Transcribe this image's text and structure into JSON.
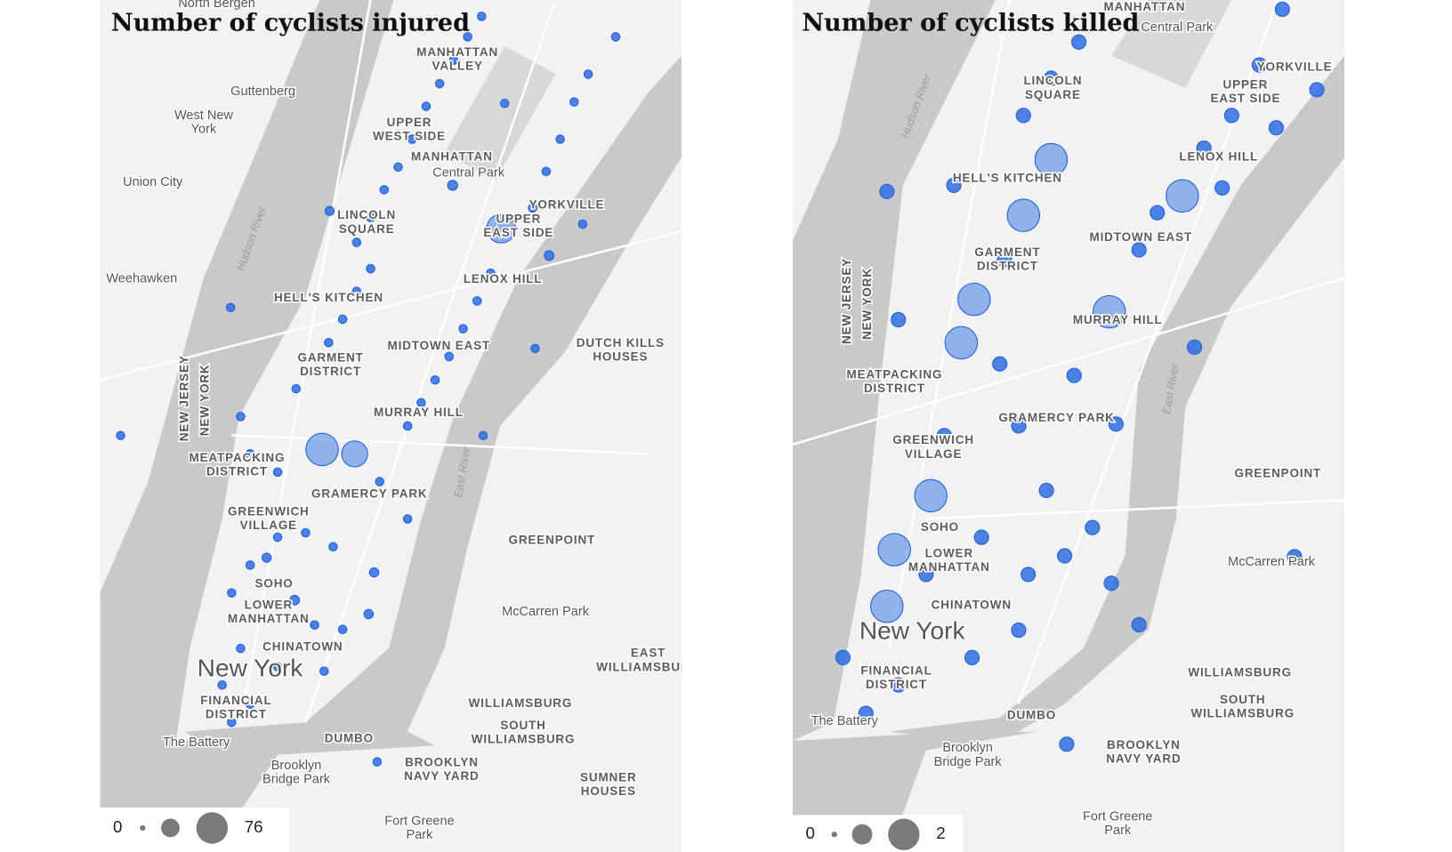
{
  "panels": [
    {
      "title": "Number of cyclists injured",
      "legend": {
        "min": 0,
        "max": 76
      },
      "labels": [
        [
          "North Bergen"
        ],
        [
          "MANHATTAN",
          "VALLEY"
        ],
        [
          "Guttenberg"
        ],
        [
          "West New",
          "York"
        ],
        [
          "Union City"
        ],
        [
          "UPPER",
          "WEST SIDE"
        ],
        [
          "MANHATTAN"
        ],
        [
          "Central Park"
        ],
        [
          "YORKVILLE"
        ],
        [
          "LINCOLN",
          "SQUARE"
        ],
        [
          "UPPER",
          "EAST SIDE"
        ],
        [
          "Weehawken"
        ],
        [
          "HELL'S KITCHEN"
        ],
        [
          "LENOX HILL"
        ],
        [
          "DUTCH KILLS",
          "HOUSES"
        ],
        [
          "GARMENT",
          "DISTRICT"
        ],
        [
          "MIDTOWN EAST"
        ],
        [
          "MURRAY HILL"
        ],
        [
          "MEATPACKING",
          "DISTRICT"
        ],
        [
          "GRAMERCY PARK"
        ],
        [
          "GREENWICH",
          "VILLAGE"
        ],
        [
          "GREENPOINT"
        ],
        [
          "SOHO"
        ],
        [
          "LOWER",
          "MANHATTAN"
        ],
        [
          "McCarren Park"
        ],
        [
          "CHINATOWN"
        ],
        [
          "New York"
        ],
        [
          "EAST",
          "WILLIAMSBURG"
        ],
        [
          "WILLIAMSBURG"
        ],
        [
          "SOUTH",
          "WILLIAMSBURG"
        ],
        [
          "FINANCIAL",
          "DISTRICT"
        ],
        [
          "The Battery"
        ],
        [
          "DUMBO"
        ],
        [
          "Brooklyn",
          "Bridge Park"
        ],
        [
          "BROOKLYN",
          "NAVY YARD"
        ],
        [
          "SUMNER",
          "HOUSES"
        ],
        [
          "Fort Greene",
          "Park"
        ],
        [
          "NEW JERSEY"
        ],
        [
          "NEW YORK"
        ],
        [
          "Hudson River"
        ],
        [
          "East River"
        ]
      ],
      "points": [
        {
          "lon": -73.9941,
          "lat": 40.7422,
          "count": 76
        },
        {
          "lon": -73.9876,
          "lat": 40.7416,
          "count": 65
        },
        {
          "lon": -73.9583,
          "lat": 40.7724,
          "count": 70
        },
        {
          "lon": -73.968,
          "lat": 40.7783,
          "count": 20
        },
        {
          "lon": -73.9487,
          "lat": 40.7687,
          "count": 18
        },
        {
          "lon": -73.9926,
          "lat": 40.7748,
          "count": 12
        },
        {
          "lon": -73.9848,
          "lat": 40.7197,
          "count": 15
        },
        {
          "lon": -73.9996,
          "lat": 40.7216,
          "count": 18
        },
        {
          "lon": -73.9837,
          "lat": 40.7254,
          "count": 15
        },
        {
          "lon": -74.0052,
          "lat": 40.7274,
          "count": 14
        },
        {
          "lon": -74.0124,
          "lat": 40.7616,
          "count": 3
        },
        {
          "lon": -74.0344,
          "lat": 40.7441,
          "count": 3
        },
        {
          "lon": -73.9831,
          "lat": 40.6995,
          "count": 3
        },
        {
          "lon": -73.9619,
          "lat": 40.7441,
          "count": 3
        },
        {
          "lon": -73.9515,
          "lat": 40.756,
          "count": 3
        },
        {
          "lon": -73.9576,
          "lat": 40.7895,
          "count": 3
        },
        {
          "lon": -73.942,
          "lat": 40.773,
          "count": 3
        },
        {
          "lon": -73.9928,
          "lat": 40.7568,
          "count": 5
        },
        {
          "lon": -73.99,
          "lat": 40.76,
          "count": 5
        },
        {
          "lon": -73.9872,
          "lat": 40.7638,
          "count": 5
        },
        {
          "lon": -73.9844,
          "lat": 40.7669,
          "count": 6
        },
        {
          "lon": -73.9872,
          "lat": 40.7705,
          "count": 5
        },
        {
          "lon": -73.9844,
          "lat": 40.7739,
          "count": 5
        },
        {
          "lon": -73.9817,
          "lat": 40.7777,
          "count": 5
        },
        {
          "lon": -73.9789,
          "lat": 40.7808,
          "count": 5
        },
        {
          "lon": -73.9761,
          "lat": 40.7846,
          "count": 5
        },
        {
          "lon": -73.9733,
          "lat": 40.7891,
          "count": 5
        },
        {
          "lon": -73.9706,
          "lat": 40.7922,
          "count": 5
        },
        {
          "lon": -73.9678,
          "lat": 40.7954,
          "count": 5
        },
        {
          "lon": -73.965,
          "lat": 40.7986,
          "count": 5
        },
        {
          "lon": -73.9622,
          "lat": 40.8014,
          "count": 5
        },
        {
          "lon": -73.977,
          "lat": 40.7454,
          "count": 6
        },
        {
          "lon": -73.9743,
          "lat": 40.7486,
          "count": 5
        },
        {
          "lon": -73.9715,
          "lat": 40.7517,
          "count": 5
        },
        {
          "lon": -73.9687,
          "lat": 40.7549,
          "count": 5
        },
        {
          "lon": -73.9659,
          "lat": 40.7587,
          "count": 5
        },
        {
          "lon": -73.9631,
          "lat": 40.7625,
          "count": 5
        },
        {
          "lon": -73.9604,
          "lat": 40.7663,
          "count": 5
        },
        {
          "lon": -73.952,
          "lat": 40.7752,
          "count": 5
        },
        {
          "lon": -73.9493,
          "lat": 40.7802,
          "count": 5
        },
        {
          "lon": -73.9465,
          "lat": 40.7846,
          "count": 5
        },
        {
          "lon": -73.9437,
          "lat": 40.7897,
          "count": 5
        },
        {
          "lon": -73.9409,
          "lat": 40.7935,
          "count": 5
        },
        {
          "lon": -73.9354,
          "lat": 40.7986,
          "count": 5
        },
        {
          "lon": -74.003,
          "lat": 40.7302,
          "count": 5
        },
        {
          "lon": -73.9974,
          "lat": 40.7308,
          "count": 5
        },
        {
          "lon": -73.9919,
          "lat": 40.7289,
          "count": 5
        },
        {
          "lon": -74.0085,
          "lat": 40.7264,
          "count": 5
        },
        {
          "lon": -74.0122,
          "lat": 40.7226,
          "count": 5
        },
        {
          "lon": -73.9956,
          "lat": 40.7182,
          "count": 6
        },
        {
          "lon": -73.99,
          "lat": 40.7176,
          "count": 6
        },
        {
          "lon": -74.0104,
          "lat": 40.715,
          "count": 5
        },
        {
          "lon": -74.003,
          "lat": 40.7125,
          "count": 5
        },
        {
          "lon": -73.9937,
          "lat": 40.7119,
          "count": 5
        },
        {
          "lon": -74.0141,
          "lat": 40.71,
          "count": 5
        },
        {
          "lon": -74.0085,
          "lat": 40.7074,
          "count": 5
        },
        {
          "lon": -74.0122,
          "lat": 40.7049,
          "count": 5
        },
        {
          "lon": -74.003,
          "lat": 40.7391,
          "count": 5
        },
        {
          "lon": -73.9826,
          "lat": 40.7378,
          "count": 5
        },
        {
          "lon": -73.977,
          "lat": 40.7327,
          "count": 5
        },
        {
          "lon": -73.9993,
          "lat": 40.7505,
          "count": 5
        },
        {
          "lon": -74.0104,
          "lat": 40.7467,
          "count": 5
        },
        {
          "lon": -74.0085,
          "lat": 40.7416,
          "count": 5
        }
      ]
    },
    {
      "title": "Number of cyclists killed",
      "legend": {
        "min": 0,
        "max": 2
      },
      "labels": [
        [
          "Central Park"
        ],
        [
          "MANHATTAN"
        ],
        [
          "LINCOLN",
          "SQUARE"
        ],
        [
          "YORKVILLE"
        ],
        [
          "UPPER",
          "EAST SIDE"
        ],
        [
          "Hudson River"
        ],
        [
          "LENOX HILL"
        ],
        [
          "HELL'S KITCHEN"
        ],
        [
          "MIDTOWN EAST"
        ],
        [
          "GARMENT",
          "DISTRICT"
        ],
        [
          "NEW JERSEY"
        ],
        [
          "NEW YORK"
        ],
        [
          "MURRAY HILL"
        ],
        [
          "MEATPACKING",
          "DISTRICT"
        ],
        [
          "East River"
        ],
        [
          "GRAMERCY PARK"
        ],
        [
          "GREENWICH",
          "VILLAGE"
        ],
        [
          "GREENPOINT"
        ],
        [
          "SOHO"
        ],
        [
          "LOWER",
          "MANHATTAN"
        ],
        [
          "McCarren Park"
        ],
        [
          "CHINATOWN"
        ],
        [
          "New York"
        ],
        [
          "WILLIAMSBURG"
        ],
        [
          "SOUTH",
          "WILLIAMSBURG"
        ],
        [
          "FINANCIAL",
          "DISTRICT"
        ],
        [
          "The Battery"
        ],
        [
          "DUMBO"
        ],
        [
          "Brooklyn",
          "Bridge Park"
        ],
        [
          "BROOKLYN",
          "NAVY YARD"
        ],
        [
          "Fort Greene",
          "Park"
        ]
      ],
      "points": [
        {
          "lon": -74.0047,
          "lat": 40.7281,
          "count": 2
        },
        {
          "lon": -74.0101,
          "lat": 40.722,
          "count": 2
        },
        {
          "lon": -74.0112,
          "lat": 40.7156,
          "count": 2
        },
        {
          "lon": -74.0002,
          "lat": 40.7454,
          "count": 2
        },
        {
          "lon": -73.9983,
          "lat": 40.7503,
          "count": 2
        },
        {
          "lon": -73.991,
          "lat": 40.7598,
          "count": 2
        },
        {
          "lon": -73.9869,
          "lat": 40.7661,
          "count": 2
        },
        {
          "lon": -73.9675,
          "lat": 40.762,
          "count": 2
        },
        {
          "lon": -73.9783,
          "lat": 40.7489,
          "count": 2
        },
        {
          "lon": -73.991,
          "lat": 40.7711,
          "count": 1
        },
        {
          "lon": -73.9869,
          "lat": 40.7753,
          "count": 1
        },
        {
          "lon": -73.9828,
          "lat": 40.7794,
          "count": 1
        },
        {
          "lon": -73.9739,
          "lat": 40.7559,
          "count": 1
        },
        {
          "lon": -73.9712,
          "lat": 40.7601,
          "count": 1
        },
        {
          "lon": -73.9643,
          "lat": 40.7674,
          "count": 1
        },
        {
          "lon": -73.9602,
          "lat": 40.7711,
          "count": 1
        },
        {
          "lon": -73.9561,
          "lat": 40.7768,
          "count": 1
        },
        {
          "lon": -73.9527,
          "lat": 40.7831,
          "count": 1
        },
        {
          "lon": -73.9945,
          "lat": 40.743,
          "count": 1
        },
        {
          "lon": -73.9917,
          "lat": 40.736,
          "count": 1
        },
        {
          "lon": -73.9876,
          "lat": 40.7287,
          "count": 1
        },
        {
          "lon": -73.9849,
          "lat": 40.7213,
          "count": 1
        },
        {
          "lon": -73.9917,
          "lat": 40.7129,
          "count": 1
        },
        {
          "lon": -73.9986,
          "lat": 40.7098,
          "count": 1
        },
        {
          "lon": -74.0095,
          "lat": 40.7067,
          "count": 1
        },
        {
          "lon": -74.0143,
          "lat": 40.7035,
          "count": 1
        },
        {
          "lon": -73.978,
          "lat": 40.7182,
          "count": 1
        },
        {
          "lon": -73.9739,
          "lat": 40.7135,
          "count": 1
        },
        {
          "lon": -73.9657,
          "lat": 40.7449,
          "count": 1
        },
        {
          "lon": -73.9616,
          "lat": 40.7629,
          "count": 1
        },
        {
          "lon": -73.9536,
          "lat": 40.7697,
          "count": 1
        },
        {
          "lon": -73.9476,
          "lat": 40.774,
          "count": 1
        },
        {
          "lon": -74.0112,
          "lat": 40.7625,
          "count": 1
        },
        {
          "lon": -73.9846,
          "lat": 40.7,
          "count": 1
        },
        {
          "lon": -73.9509,
          "lat": 40.7212,
          "count": 1
        },
        {
          "lon": -74.0027,
          "lat": 40.7349,
          "count": 1
        },
        {
          "lon": -73.9972,
          "lat": 40.7234,
          "count": 1
        },
        {
          "lon": -74.0054,
          "lat": 40.7192,
          "count": 1
        },
        {
          "lon": -73.9835,
          "lat": 40.7417,
          "count": 1
        },
        {
          "lon": -73.9773,
          "lat": 40.7362,
          "count": 1
        },
        {
          "lon": -73.9903,
          "lat": 40.7192,
          "count": 1
        },
        {
          "lon": -73.9808,
          "lat": 40.7245,
          "count": 1
        },
        {
          "lon": -74.0177,
          "lat": 40.7098,
          "count": 1
        },
        {
          "lon": -74.0095,
          "lat": 40.748,
          "count": 1
        },
        {
          "lon": -74.0013,
          "lat": 40.7632,
          "count": 1
        },
        {
          "lon": -73.9938,
          "lat": 40.7548,
          "count": 1
        }
      ]
    }
  ]
}
